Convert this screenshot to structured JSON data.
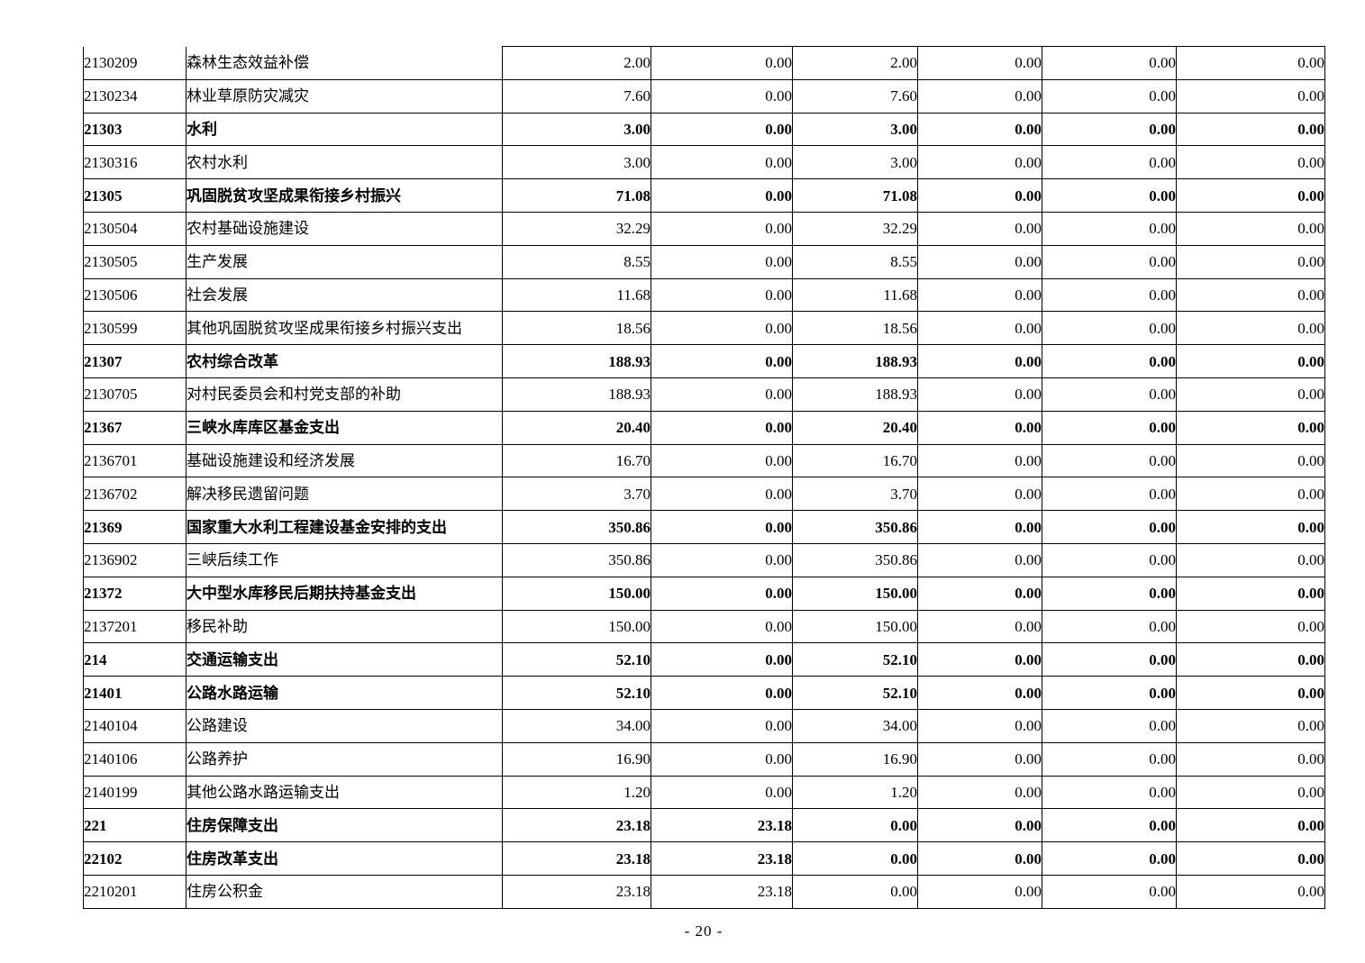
{
  "page": {
    "footer_page_label": "- 20 -"
  },
  "table": {
    "column_semantics": [
      "code",
      "name",
      "amount_1",
      "amount_2",
      "amount_3",
      "amount_4",
      "amount_5",
      "amount_6"
    ],
    "rows": [
      {
        "code": "2130209",
        "name": "森林生态效益补偿",
        "bold": false,
        "values": [
          "2.00",
          "0.00",
          "2.00",
          "0.00",
          "0.00",
          "0.00"
        ]
      },
      {
        "code": "2130234",
        "name": "林业草原防灾减灾",
        "bold": false,
        "values": [
          "7.60",
          "0.00",
          "7.60",
          "0.00",
          "0.00",
          "0.00"
        ]
      },
      {
        "code": "21303",
        "name": "水利",
        "bold": true,
        "values": [
          "3.00",
          "0.00",
          "3.00",
          "0.00",
          "0.00",
          "0.00"
        ]
      },
      {
        "code": "2130316",
        "name": "农村水利",
        "bold": false,
        "values": [
          "3.00",
          "0.00",
          "3.00",
          "0.00",
          "0.00",
          "0.00"
        ]
      },
      {
        "code": "21305",
        "name": "巩固脱贫攻坚成果衔接乡村振兴",
        "bold": true,
        "values": [
          "71.08",
          "0.00",
          "71.08",
          "0.00",
          "0.00",
          "0.00"
        ]
      },
      {
        "code": "2130504",
        "name": "农村基础设施建设",
        "bold": false,
        "values": [
          "32.29",
          "0.00",
          "32.29",
          "0.00",
          "0.00",
          "0.00"
        ]
      },
      {
        "code": "2130505",
        "name": "生产发展",
        "bold": false,
        "values": [
          "8.55",
          "0.00",
          "8.55",
          "0.00",
          "0.00",
          "0.00"
        ]
      },
      {
        "code": "2130506",
        "name": "社会发展",
        "bold": false,
        "values": [
          "11.68",
          "0.00",
          "11.68",
          "0.00",
          "0.00",
          "0.00"
        ]
      },
      {
        "code": "2130599",
        "name": "其他巩固脱贫攻坚成果衔接乡村振兴支出",
        "bold": false,
        "values": [
          "18.56",
          "0.00",
          "18.56",
          "0.00",
          "0.00",
          "0.00"
        ]
      },
      {
        "code": "21307",
        "name": "农村综合改革",
        "bold": true,
        "values": [
          "188.93",
          "0.00",
          "188.93",
          "0.00",
          "0.00",
          "0.00"
        ]
      },
      {
        "code": "2130705",
        "name": "对村民委员会和村党支部的补助",
        "bold": false,
        "values": [
          "188.93",
          "0.00",
          "188.93",
          "0.00",
          "0.00",
          "0.00"
        ]
      },
      {
        "code": "21367",
        "name": "三峡水库库区基金支出",
        "bold": true,
        "values": [
          "20.40",
          "0.00",
          "20.40",
          "0.00",
          "0.00",
          "0.00"
        ]
      },
      {
        "code": "2136701",
        "name": "基础设施建设和经济发展",
        "bold": false,
        "values": [
          "16.70",
          "0.00",
          "16.70",
          "0.00",
          "0.00",
          "0.00"
        ]
      },
      {
        "code": "2136702",
        "name": "解决移民遗留问题",
        "bold": false,
        "values": [
          "3.70",
          "0.00",
          "3.70",
          "0.00",
          "0.00",
          "0.00"
        ]
      },
      {
        "code": "21369",
        "name": "国家重大水利工程建设基金安排的支出",
        "bold": true,
        "values": [
          "350.86",
          "0.00",
          "350.86",
          "0.00",
          "0.00",
          "0.00"
        ]
      },
      {
        "code": "2136902",
        "name": "三峡后续工作",
        "bold": false,
        "values": [
          "350.86",
          "0.00",
          "350.86",
          "0.00",
          "0.00",
          "0.00"
        ]
      },
      {
        "code": "21372",
        "name": "大中型水库移民后期扶持基金支出",
        "bold": true,
        "values": [
          "150.00",
          "0.00",
          "150.00",
          "0.00",
          "0.00",
          "0.00"
        ]
      },
      {
        "code": "2137201",
        "name": "移民补助",
        "bold": false,
        "values": [
          "150.00",
          "0.00",
          "150.00",
          "0.00",
          "0.00",
          "0.00"
        ]
      },
      {
        "code": "214",
        "name": "交通运输支出",
        "bold": true,
        "values": [
          "52.10",
          "0.00",
          "52.10",
          "0.00",
          "0.00",
          "0.00"
        ]
      },
      {
        "code": "21401",
        "name": "公路水路运输",
        "bold": true,
        "values": [
          "52.10",
          "0.00",
          "52.10",
          "0.00",
          "0.00",
          "0.00"
        ]
      },
      {
        "code": "2140104",
        "name": "公路建设",
        "bold": false,
        "values": [
          "34.00",
          "0.00",
          "34.00",
          "0.00",
          "0.00",
          "0.00"
        ]
      },
      {
        "code": "2140106",
        "name": "公路养护",
        "bold": false,
        "values": [
          "16.90",
          "0.00",
          "16.90",
          "0.00",
          "0.00",
          "0.00"
        ]
      },
      {
        "code": "2140199",
        "name": "其他公路水路运输支出",
        "bold": false,
        "values": [
          "1.20",
          "0.00",
          "1.20",
          "0.00",
          "0.00",
          "0.00"
        ]
      },
      {
        "code": "221",
        "name": "住房保障支出",
        "bold": true,
        "values": [
          "23.18",
          "23.18",
          "0.00",
          "0.00",
          "0.00",
          "0.00"
        ]
      },
      {
        "code": "22102",
        "name": "住房改革支出",
        "bold": true,
        "values": [
          "23.18",
          "23.18",
          "0.00",
          "0.00",
          "0.00",
          "0.00"
        ]
      },
      {
        "code": "2210201",
        "name": "住房公积金",
        "bold": false,
        "values": [
          "23.18",
          "23.18",
          "0.00",
          "0.00",
          "0.00",
          "0.00"
        ]
      }
    ]
  }
}
